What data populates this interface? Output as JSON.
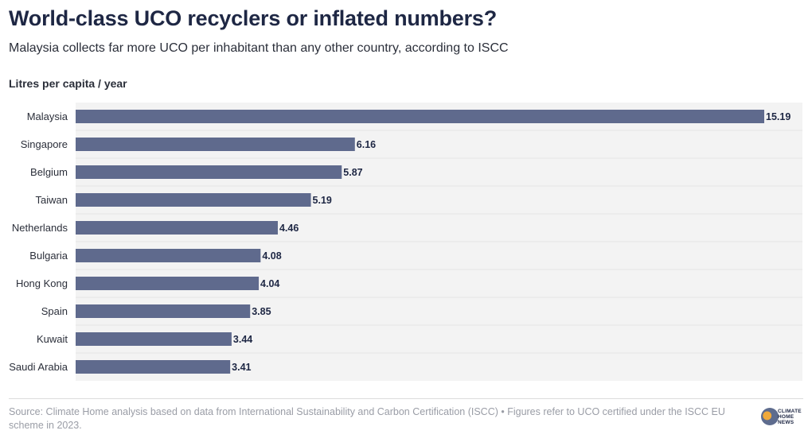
{
  "header": {
    "title": "World-class UCO recyclers or inflated numbers?",
    "subtitle": "Malaysia collects far more UCO per inhabitant than any other country, according to ISCC",
    "axis_label": "Litres per capita / year"
  },
  "chart_data": {
    "type": "bar",
    "orientation": "horizontal",
    "title": "World-class UCO recyclers or inflated numbers?",
    "ylabel": "Litres per capita / year",
    "categories": [
      "Malaysia",
      "Singapore",
      "Belgium",
      "Taiwan",
      "Netherlands",
      "Bulgaria",
      "Hong Kong",
      "Spain",
      "Kuwait",
      "Saudi Arabia"
    ],
    "values": [
      15.19,
      6.16,
      5.87,
      5.19,
      4.46,
      4.08,
      4.04,
      3.85,
      3.44,
      3.41
    ],
    "value_labels": [
      "15.19",
      "6.16",
      "5.87",
      "5.19",
      "4.46",
      "4.08",
      "4.04",
      "3.85",
      "3.44",
      "3.41"
    ],
    "xlim": [
      0,
      15.19
    ],
    "grid": false,
    "bar_color": "#5f6a8d",
    "plot_background": "#f3f3f3"
  },
  "footer": {
    "source": "Source: Climate Home analysis based on data from International Sustainability and Carbon Certification (ISCC) • Figures refer to UCO certified under the ISCC EU scheme in 2023.",
    "logo_line1": "CLIMATE",
    "logo_line2": "HOME",
    "logo_line3": "NEWS"
  }
}
